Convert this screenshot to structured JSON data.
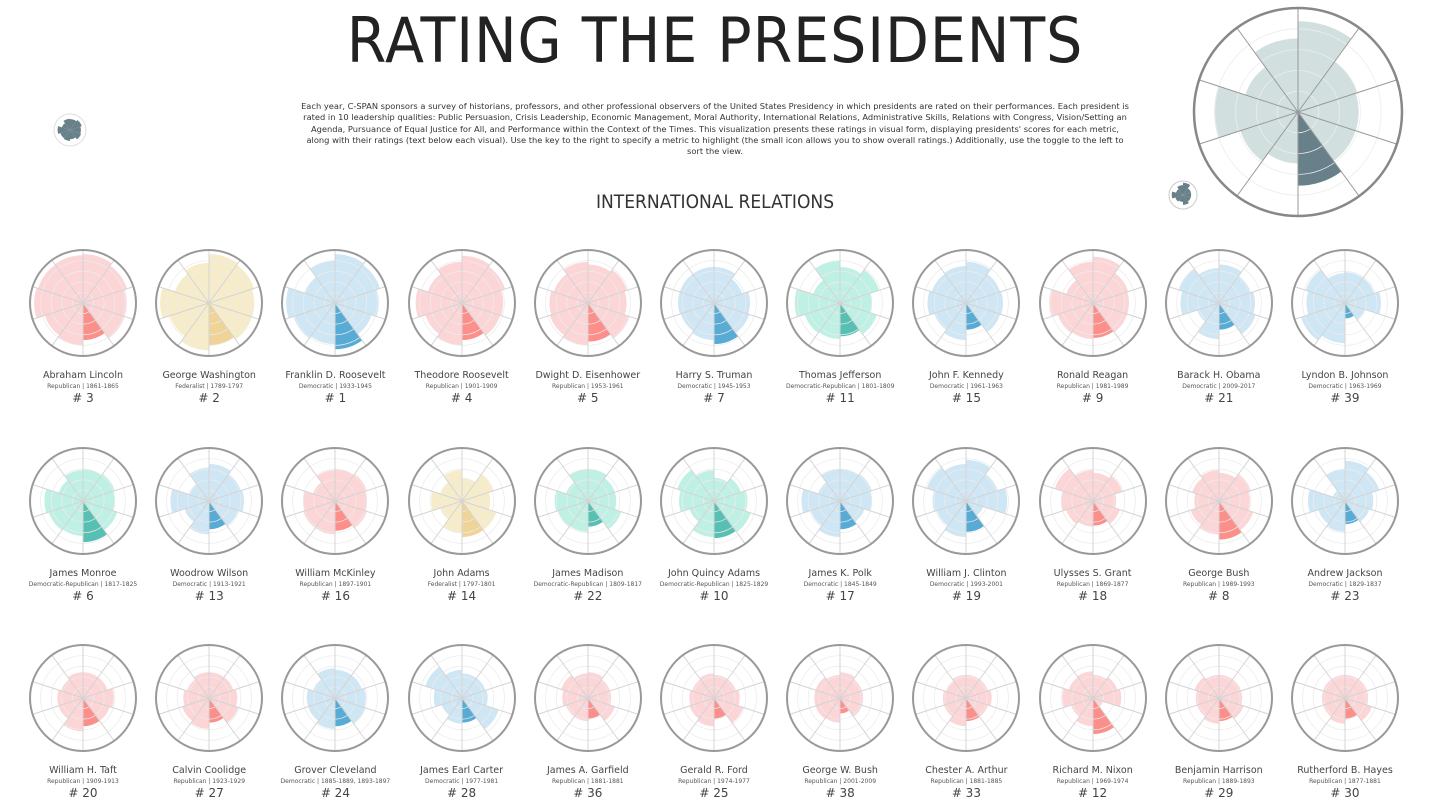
{
  "title": "RATING THE PRESIDENTS",
  "description": "Each year, C-SPAN sponsors a survey of historians, professors, and other professional observers of the United States Presidency in which presidents are rated on their performances. Each president is rated in 10 leadership qualities: Public Persuasion, Crisis Leadership, Economic Management, Moral Authority, International Relations, Administrative Skills, Relations with Congress, Vision/Setting an Agenda, Pursuance of Equal Justice for All, and Performance within the Context of the Times. This visualization presents these ratings in visual form, displaying presidents' scores for each metric, along with their ratings (text below each visual). Use the key to the right to specify a metric to highlight (the small icon allows you to show overall ratings.) Additionally, use the toggle to the left to sort the view.",
  "selected_metric": "INTERNATIONAL RELATIONS",
  "highlight_index": 4,
  "colors": {
    "Republican": {
      "light": "#fcd5d7",
      "dark": "#fd8f8b"
    },
    "Democratic": {
      "light": "#cfe6f4",
      "dark": "#57abd5"
    },
    "Federalist": {
      "light": "#f6ecca",
      "dark": "#f0d497"
    },
    "Democratic-Republican": {
      "light": "#bff0e4",
      "dark": "#57c0b2"
    },
    "key": {
      "light": "#d1e0df",
      "dark": "#68808a"
    },
    "ring": "#999999",
    "spoke": "#d4d4d4",
    "grid": "#ececec"
  },
  "key": {
    "icon": "overall-rating-icon",
    "values": [
      90,
      62,
      60,
      60,
      73,
      51,
      60,
      83,
      55,
      73
    ]
  },
  "toggle": {
    "icon": "sort-toggle-icon"
  },
  "presidents": [
    {
      "name": "Abraham Lincoln",
      "party": "Republican",
      "meta": "Republican | 1861-1865",
      "rank": "# 3",
      "values": [
        95,
        90,
        85,
        85,
        72,
        82,
        78,
        95,
        92,
        93
      ]
    },
    {
      "name": "George Washington",
      "party": "Federalist",
      "meta": "Federalist | 1789-1797",
      "rank": "# 2",
      "values": [
        95,
        92,
        88,
        88,
        82,
        92,
        80,
        95,
        70,
        78
      ]
    },
    {
      "name": "Franklin D. Roosevelt",
      "party": "Democratic",
      "meta": "Democratic | 1933-1945",
      "rank": "# 1",
      "values": [
        95,
        92,
        85,
        75,
        90,
        80,
        85,
        95,
        62,
        82
      ]
    },
    {
      "name": "Theodore Roosevelt",
      "party": "Republican",
      "meta": "Republican | 1901-1909",
      "rank": "# 4",
      "values": [
        92,
        88,
        80,
        78,
        72,
        82,
        75,
        90,
        70,
        80
      ]
    },
    {
      "name": "Dwight D. Eisenhower",
      "party": "Republican",
      "meta": "Republican | 1953-1961",
      "rank": "# 5",
      "values": [
        75,
        80,
        75,
        85,
        75,
        82,
        78,
        75,
        70,
        80
      ]
    },
    {
      "name": "Harry S. Truman",
      "party": "Democratic",
      "meta": "Democratic | 1945-1953",
      "rank": "# 7",
      "values": [
        70,
        58,
        70,
        72,
        80,
        72,
        68,
        70,
        70,
        70
      ]
    },
    {
      "name": "Thomas Jefferson",
      "party": "Democratic-Republican",
      "meta": "Democratic-Republican | 1801-1809",
      "rank": "# 11",
      "values": [
        70,
        80,
        62,
        75,
        65,
        70,
        72,
        88,
        55,
        82
      ]
    },
    {
      "name": "John F. Kennedy",
      "party": "Democratic",
      "meta": "Democratic | 1961-1963",
      "rank": "# 15",
      "values": [
        80,
        70,
        72,
        70,
        52,
        72,
        65,
        75,
        70,
        72
      ]
    },
    {
      "name": "Ronald Reagan",
      "party": "Republican",
      "meta": "Republican | 1981-1989",
      "rank": "# 9",
      "values": [
        90,
        72,
        70,
        70,
        68,
        70,
        72,
        85,
        55,
        80
      ]
    },
    {
      "name": "Barack H. Obama",
      "party": "Democratic",
      "meta": "Democratic | 2009-2017",
      "rank": "# 21",
      "values": [
        75,
        65,
        70,
        75,
        52,
        70,
        45,
        75,
        82,
        68
      ]
    },
    {
      "name": "Lyndon B. Johnson",
      "party": "Democratic",
      "meta": "Democratic | 1963-1969",
      "rank": "# 39",
      "values": [
        60,
        60,
        70,
        40,
        30,
        78,
        90,
        75,
        80,
        58
      ]
    },
    {
      "name": "James Monroe",
      "party": "Democratic-Republican",
      "meta": "Democratic-Republican | 1817-1825",
      "rank": "# 6",
      "values": [
        62,
        65,
        62,
        70,
        80,
        68,
        70,
        75,
        50,
        60
      ]
    },
    {
      "name": "Woodrow Wilson",
      "party": "Democratic",
      "meta": "Democratic | 1913-1921",
      "rank": "# 13",
      "values": [
        72,
        65,
        68,
        60,
        55,
        65,
        50,
        75,
        40,
        65
      ]
    },
    {
      "name": "William McKinley",
      "party": "Republican",
      "meta": "Republican | 1897-1901",
      "rank": "# 16",
      "values": [
        62,
        65,
        62,
        65,
        58,
        65,
        65,
        62,
        45,
        60
      ]
    },
    {
      "name": "John Adams",
      "party": "Federalist",
      "meta": "Federalist | 1797-1801",
      "rank": "# 14",
      "values": [
        45,
        65,
        55,
        70,
        70,
        62,
        45,
        60,
        45,
        60
      ]
    },
    {
      "name": "James Madison",
      "party": "Democratic-Republican",
      "meta": "Democratic-Republican | 1809-1817",
      "rank": "# 22",
      "values": [
        62,
        55,
        55,
        68,
        50,
        60,
        62,
        65,
        45,
        62
      ]
    },
    {
      "name": "John Quincy Adams",
      "party": "Democratic-Republican",
      "meta": "Democratic-Republican | 1825-1829",
      "rank": "# 10",
      "values": [
        45,
        55,
        65,
        75,
        72,
        70,
        50,
        68,
        75,
        60
      ]
    },
    {
      "name": "James K. Polk",
      "party": "Democratic",
      "meta": "Democratic | 1845-1849",
      "rank": "# 17",
      "values": [
        62,
        65,
        62,
        50,
        55,
        70,
        60,
        75,
        45,
        62
      ]
    },
    {
      "name": "William J. Clinton",
      "party": "Democratic",
      "meta": "Democratic | 1993-2001",
      "rank": "# 19",
      "values": [
        80,
        65,
        80,
        35,
        60,
        70,
        60,
        65,
        80,
        72
      ]
    },
    {
      "name": "Ulysses S. Grant",
      "party": "Republican",
      "meta": "Republican | 1869-1877",
      "rank": "# 18",
      "values": [
        55,
        60,
        45,
        55,
        48,
        50,
        55,
        62,
        78,
        60
      ]
    },
    {
      "name": "George Bush",
      "party": "Republican",
      "meta": "Republican | 1989-1993",
      "rank": "# 8",
      "values": [
        55,
        65,
        60,
        70,
        75,
        65,
        58,
        48,
        55,
        60
      ]
    },
    {
      "name": "Andrew Jackson",
      "party": "Democratic",
      "meta": "Democratic | 1829-1837",
      "rank": "# 23",
      "values": [
        78,
        70,
        55,
        50,
        45,
        60,
        55,
        72,
        25,
        62
      ]
    },
    {
      "name": "William H. Taft",
      "party": "Republican",
      "meta": "Republican | 1909-1913",
      "rank": "# 20",
      "values": [
        50,
        50,
        60,
        55,
        55,
        65,
        50,
        50,
        45,
        50
      ]
    },
    {
      "name": "Calvin Coolidge",
      "party": "Republican",
      "meta": "Republican | 1923-1929",
      "rank": "# 27",
      "values": [
        50,
        50,
        55,
        60,
        48,
        60,
        55,
        50,
        45,
        50
      ]
    },
    {
      "name": "Grover Cleveland",
      "party": "Democratic",
      "meta": "Democratic | 1885-1889, 1893-1897",
      "rank": "# 24",
      "values": [
        55,
        55,
        60,
        62,
        55,
        60,
        55,
        55,
        45,
        58
      ]
    },
    {
      "name": "James Earl Carter",
      "party": "Democratic",
      "meta": "Democratic | 1977-1981",
      "rank": "# 28",
      "values": [
        48,
        48,
        50,
        75,
        48,
        50,
        42,
        55,
        75,
        55
      ]
    },
    {
      "name": "James A. Garfield",
      "party": "Republican",
      "meta": "Republican | 1881-1881",
      "rank": "# 36",
      "values": [
        50,
        45,
        45,
        55,
        40,
        45,
        45,
        50,
        55,
        48
      ]
    },
    {
      "name": "Gerald R. Ford",
      "party": "Republican",
      "meta": "Republican | 1974-1977",
      "rank": "# 25",
      "values": [
        45,
        45,
        50,
        60,
        40,
        55,
        50,
        48,
        45,
        48
      ]
    },
    {
      "name": "George W. Bush",
      "party": "Republican",
      "meta": "Republican | 2001-2009",
      "rank": "# 38",
      "values": [
        50,
        45,
        45,
        45,
        30,
        48,
        50,
        50,
        50,
        45
      ]
    },
    {
      "name": "Chester A. Arthur",
      "party": "Republican",
      "meta": "Republican | 1881-1885",
      "rank": "# 33",
      "values": [
        45,
        45,
        50,
        45,
        45,
        55,
        45,
        45,
        40,
        45
      ]
    },
    {
      "name": "Richard M. Nixon",
      "party": "Republican",
      "meta": "Republican | 1969-1974",
      "rank": "# 12",
      "values": [
        45,
        50,
        55,
        20,
        70,
        55,
        45,
        60,
        50,
        52
      ]
    },
    {
      "name": "Benjamin Harrison",
      "party": "Republican",
      "meta": "Republican | 1889-1893",
      "rank": "# 29",
      "values": [
        45,
        45,
        45,
        50,
        45,
        50,
        45,
        45,
        50,
        45
      ]
    },
    {
      "name": "Rutherford B. Hayes",
      "party": "Republican",
      "meta": "Republican | 1877-1881",
      "rank": "# 30",
      "values": [
        45,
        45,
        45,
        55,
        40,
        50,
        45,
        45,
        45,
        45
      ]
    }
  ]
}
